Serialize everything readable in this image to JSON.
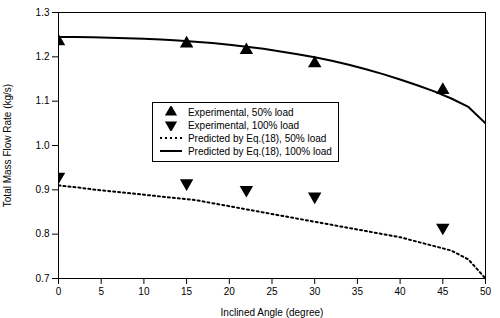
{
  "chart_data": {
    "type": "line",
    "xlabel": "Inclined Angle (degree)",
    "ylabel": "Total Mass Flow Rate (kg/s)",
    "xlim": [
      0,
      50
    ],
    "ylim": [
      0.7,
      1.3
    ],
    "xticks": [
      0,
      5,
      10,
      15,
      20,
      25,
      30,
      35,
      40,
      45,
      50
    ],
    "yticks": [
      0.7,
      0.8,
      0.9,
      {
        "value": 1.0,
        "label": "1.0"
      },
      1.1,
      1.2,
      1.3
    ],
    "grid": false,
    "legend": "left",
    "series": [
      {
        "name": "Experimental, 50% load",
        "type": "scatter",
        "marker": "triangle-up",
        "color": "black",
        "x": [
          0,
          15,
          22,
          30,
          45
        ],
        "values": [
          1.235,
          1.23,
          1.215,
          1.185,
          1.125
        ]
      },
      {
        "name": "Experimental, 100% load",
        "type": "scatter",
        "marker": "triangle-down",
        "color": "black",
        "x": [
          0,
          15,
          22,
          30,
          45
        ],
        "values": [
          0.93,
          0.915,
          0.9,
          0.885,
          0.815
        ]
      },
      {
        "name": "Predicted by Eq.(18), 50% load",
        "type": "line",
        "line_style": "dotted",
        "color": "black",
        "x": [
          0,
          2,
          4,
          6,
          8,
          10,
          12,
          14,
          16,
          18,
          20,
          22,
          24,
          26,
          28,
          30,
          32,
          34,
          36,
          38,
          40,
          42,
          44,
          46,
          48,
          50
        ],
        "values": [
          0.91,
          0.906,
          0.901,
          0.897,
          0.893,
          0.889,
          0.885,
          0.881,
          0.877,
          0.87,
          0.863,
          0.856,
          0.849,
          0.842,
          0.835,
          0.828,
          0.821,
          0.814,
          0.807,
          0.8,
          0.793,
          0.783,
          0.773,
          0.763,
          0.743,
          0.7
        ]
      },
      {
        "name": "Predicted by Eq.(18), 100% load",
        "type": "line",
        "line_style": "solid",
        "color": "black",
        "x": [
          0,
          2,
          4,
          6,
          8,
          10,
          12,
          14,
          16,
          18,
          20,
          22,
          24,
          26,
          28,
          30,
          32,
          34,
          36,
          38,
          40,
          42,
          44,
          46,
          48,
          50
        ],
        "values": [
          1.245,
          1.245,
          1.244,
          1.243,
          1.242,
          1.241,
          1.239,
          1.237,
          1.234,
          1.231,
          1.227,
          1.223,
          1.218,
          1.212,
          1.206,
          1.199,
          1.191,
          1.182,
          1.172,
          1.161,
          1.149,
          1.136,
          1.122,
          1.106,
          1.087,
          1.05
        ]
      }
    ]
  }
}
